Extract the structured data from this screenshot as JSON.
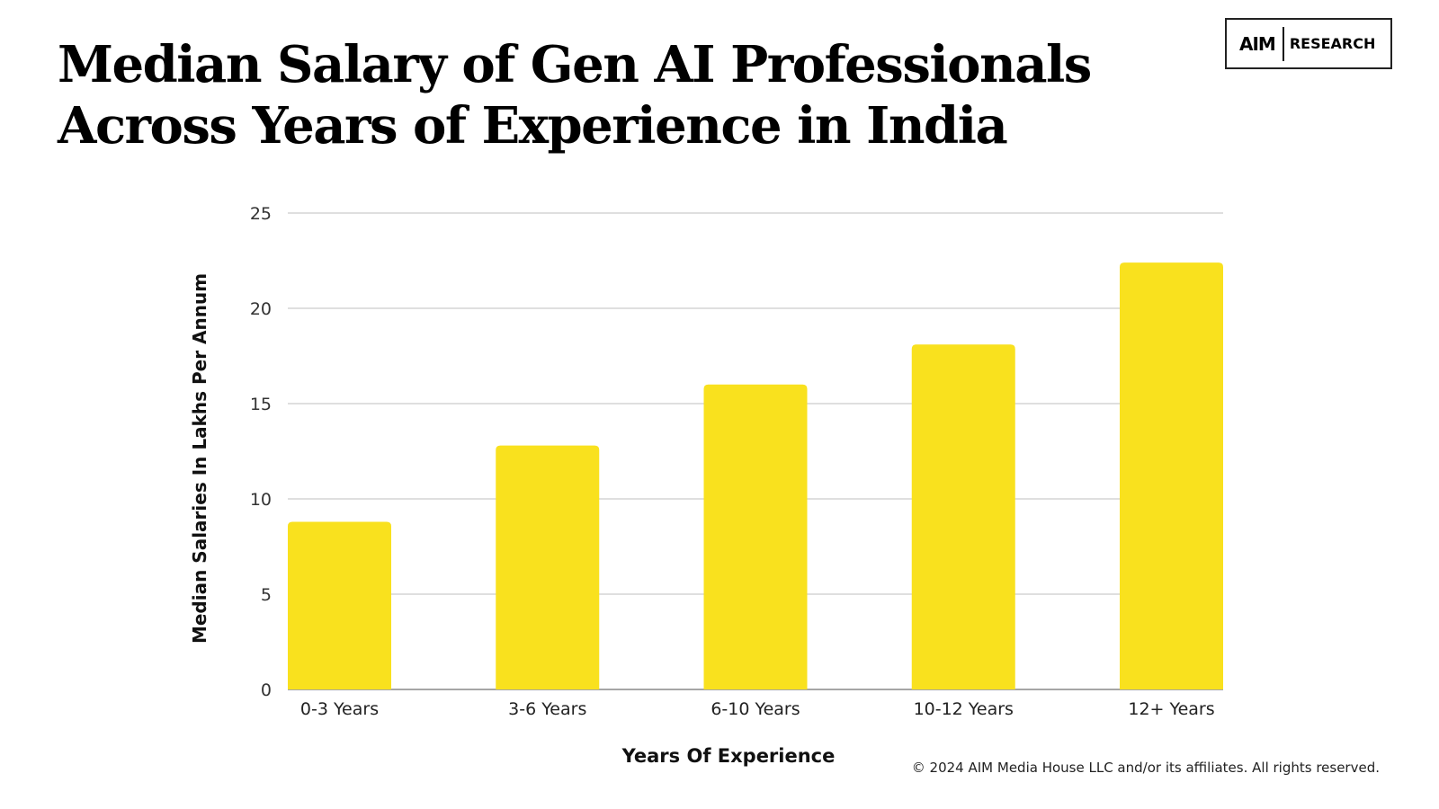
{
  "title_lines": [
    "Median Salary of Gen AI Professionals",
    "Across Years of Experience in India"
  ],
  "logo": {
    "mark": "AIM",
    "text": "RESEARCH"
  },
  "footer": "© 2024 AIM Media House LLC and/or its affiliates. All rights reserved.",
  "chart_data": {
    "type": "bar",
    "title": "Median Salary of Gen AI Professionals Across Years of Experience in India",
    "categories": [
      "0-3 Years",
      "3-6 Years",
      "6-10 Years",
      "10-12 Years",
      "12+ Years"
    ],
    "values": [
      8.8,
      12.8,
      16.0,
      18.1,
      22.4
    ],
    "xlabel": "Years Of Experience",
    "ylabel": "Median Salaries In Lakhs Per Annum",
    "ylim": [
      0,
      25
    ],
    "yticks": [
      0,
      5,
      10,
      15,
      20,
      25
    ],
    "grid": true,
    "bar_color": "#F9E11E"
  }
}
